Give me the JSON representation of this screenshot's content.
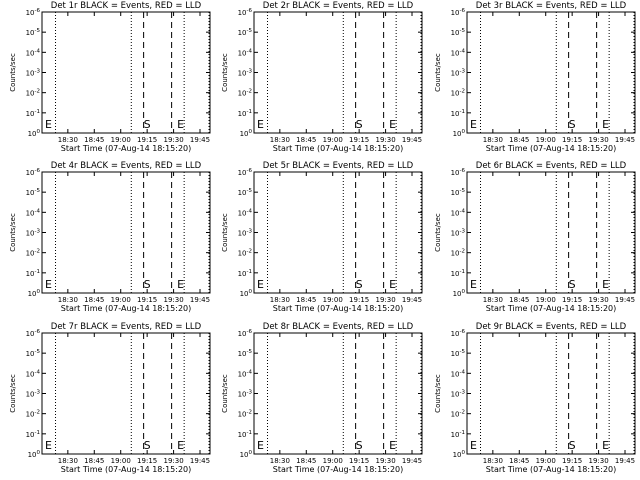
{
  "chart_data": [
    {
      "type": "line",
      "title": "Det 1r BLACK = Events, RED = LLD",
      "xlabel": "Start Time (07-Aug-14 18:15:20)",
      "ylabel": "Counts/sec",
      "x_ticks": [
        "18:30",
        "18:45",
        "19:00",
        "19:15",
        "19:30",
        "19:45"
      ],
      "y_ticks": [
        "10^0",
        "10^-1",
        "10^-2",
        "10^-3",
        "10^-4",
        "10^-5",
        "10^-6"
      ],
      "y_scale": "log",
      "markers": [
        {
          "label": "E",
          "time": "18:15"
        },
        {
          "label": "S",
          "time": "19:13"
        },
        {
          "label": "E",
          "time": "19:32"
        }
      ],
      "series": []
    },
    {
      "type": "line",
      "title": "Det 2r BLACK = Events, RED = LLD",
      "xlabel": "Start Time (07-Aug-14 18:15:20)",
      "ylabel": "Counts/sec",
      "x_ticks": [
        "18:30",
        "18:45",
        "19:00",
        "19:15",
        "19:30",
        "19:45"
      ],
      "y_ticks": [
        "10^0",
        "10^-1",
        "10^-2",
        "10^-3",
        "10^-4",
        "10^-5",
        "10^-6"
      ],
      "y_scale": "log",
      "markers": [
        {
          "label": "E",
          "time": "18:15"
        },
        {
          "label": "S",
          "time": "19:13"
        },
        {
          "label": "E",
          "time": "19:32"
        }
      ],
      "series": []
    },
    {
      "type": "line",
      "title": "Det 3r BLACK = Events, RED = LLD",
      "xlabel": "Start Time (07-Aug-14 18:15:20)",
      "ylabel": "Counts/sec",
      "x_ticks": [
        "18:30",
        "18:45",
        "19:00",
        "19:15",
        "19:30",
        "19:45"
      ],
      "y_ticks": [
        "10^0",
        "10^-1",
        "10^-2",
        "10^-3",
        "10^-4",
        "10^-5",
        "10^-6"
      ],
      "y_scale": "log",
      "markers": [
        {
          "label": "E",
          "time": "18:15"
        },
        {
          "label": "S",
          "time": "19:13"
        },
        {
          "label": "E",
          "time": "19:32"
        }
      ],
      "series": []
    },
    {
      "type": "line",
      "title": "Det 4r BLACK = Events, RED = LLD",
      "xlabel": "Start Time (07-Aug-14 18:15:20)",
      "ylabel": "Counts/sec",
      "x_ticks": [
        "18:30",
        "18:45",
        "19:00",
        "19:15",
        "19:30",
        "19:45"
      ],
      "y_ticks": [
        "10^0",
        "10^-1",
        "10^-2",
        "10^-3",
        "10^-4",
        "10^-5",
        "10^-6"
      ],
      "y_scale": "log",
      "markers": [
        {
          "label": "E",
          "time": "18:15"
        },
        {
          "label": "S",
          "time": "19:13"
        },
        {
          "label": "E",
          "time": "19:32"
        }
      ],
      "series": []
    },
    {
      "type": "line",
      "title": "Det 5r BLACK = Events, RED = LLD",
      "xlabel": "Start Time (07-Aug-14 18:15:20)",
      "ylabel": "Counts/sec",
      "x_ticks": [
        "18:30",
        "18:45",
        "19:00",
        "19:15",
        "19:30",
        "19:45"
      ],
      "y_ticks": [
        "10^0",
        "10^-1",
        "10^-2",
        "10^-3",
        "10^-4",
        "10^-5",
        "10^-6"
      ],
      "y_scale": "log",
      "markers": [
        {
          "label": "E",
          "time": "18:15"
        },
        {
          "label": "S",
          "time": "19:13"
        },
        {
          "label": "E",
          "time": "19:32"
        }
      ],
      "series": []
    },
    {
      "type": "line",
      "title": "Det 6r BLACK = Events, RED = LLD",
      "xlabel": "Start Time (07-Aug-14 18:15:20)",
      "ylabel": "Counts/sec",
      "x_ticks": [
        "18:30",
        "18:45",
        "19:00",
        "19:15",
        "19:30",
        "19:45"
      ],
      "y_ticks": [
        "10^0",
        "10^-1",
        "10^-2",
        "10^-3",
        "10^-4",
        "10^-5",
        "10^-6"
      ],
      "y_scale": "log",
      "markers": [
        {
          "label": "E",
          "time": "18:15"
        },
        {
          "label": "S",
          "time": "19:13"
        },
        {
          "label": "E",
          "time": "19:32"
        }
      ],
      "series": []
    },
    {
      "type": "line",
      "title": "Det 7r BLACK = Events, RED = LLD",
      "xlabel": "Start Time (07-Aug-14 18:15:20)",
      "ylabel": "Counts/sec",
      "x_ticks": [
        "18:30",
        "18:45",
        "19:00",
        "19:15",
        "19:30",
        "19:45"
      ],
      "y_ticks": [
        "10^0",
        "10^-1",
        "10^-2",
        "10^-3",
        "10^-4",
        "10^-5",
        "10^-6"
      ],
      "y_scale": "log",
      "markers": [
        {
          "label": "E",
          "time": "18:15"
        },
        {
          "label": "S",
          "time": "19:13"
        },
        {
          "label": "E",
          "time": "19:32"
        }
      ],
      "series": []
    },
    {
      "type": "line",
      "title": "Det 8r BLACK = Events, RED = LLD",
      "xlabel": "Start Time (07-Aug-14 18:15:20)",
      "ylabel": "Counts/sec",
      "x_ticks": [
        "18:30",
        "18:45",
        "19:00",
        "19:15",
        "19:30",
        "19:45"
      ],
      "y_ticks": [
        "10^0",
        "10^-1",
        "10^-2",
        "10^-3",
        "10^-4",
        "10^-5",
        "10^-6"
      ],
      "y_scale": "log",
      "markers": [
        {
          "label": "E",
          "time": "18:15"
        },
        {
          "label": "S",
          "time": "19:13"
        },
        {
          "label": "E",
          "time": "19:32"
        }
      ],
      "series": []
    },
    {
      "type": "line",
      "title": "Det 9r BLACK = Events, RED = LLD",
      "xlabel": "Start Time (07-Aug-14 18:15:20)",
      "ylabel": "Counts/sec",
      "x_ticks": [
        "18:30",
        "18:45",
        "19:00",
        "19:15",
        "19:30",
        "19:45"
      ],
      "y_ticks": [
        "10^0",
        "10^-1",
        "10^-2",
        "10^-3",
        "10^-4",
        "10^-5",
        "10^-6"
      ],
      "y_scale": "log",
      "markers": [
        {
          "label": "E",
          "time": "18:15"
        },
        {
          "label": "S",
          "time": "19:13"
        },
        {
          "label": "E",
          "time": "19:32"
        }
      ],
      "series": []
    }
  ]
}
